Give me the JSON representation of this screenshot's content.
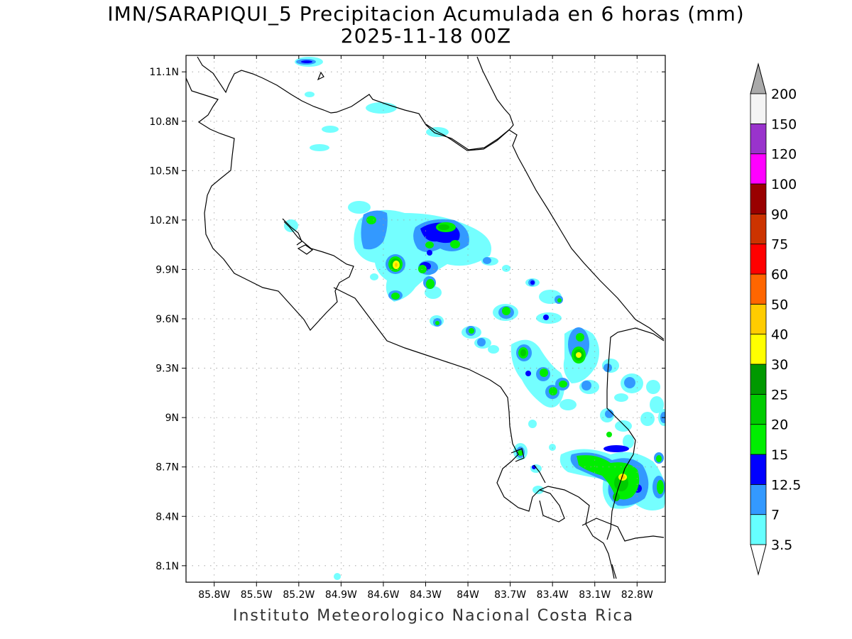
{
  "title": {
    "line1": "IMN/SARAPIQUI_5 Precipitacion Acumulada en 6 horas (mm)",
    "line2": "2025-11-18 00Z"
  },
  "credit": "Instituto Meteorologico Nacional Costa Rica",
  "map": {
    "lon_range": [
      -86.0,
      -82.6
    ],
    "lat_range": [
      8.0,
      11.2
    ],
    "lon_ticks": [
      {
        "value": -85.8,
        "label": "85.8W"
      },
      {
        "value": -85.5,
        "label": "85.5W"
      },
      {
        "value": -85.2,
        "label": "85.2W"
      },
      {
        "value": -84.9,
        "label": "84.9W"
      },
      {
        "value": -84.6,
        "label": "84.6W"
      },
      {
        "value": -84.3,
        "label": "84.3W"
      },
      {
        "value": -84.0,
        "label": "84W"
      },
      {
        "value": -83.7,
        "label": "83.7W"
      },
      {
        "value": -83.4,
        "label": "83.4W"
      },
      {
        "value": -83.1,
        "label": "83.1W"
      },
      {
        "value": -82.8,
        "label": "82.8W"
      }
    ],
    "lat_ticks": [
      {
        "value": 11.1,
        "label": "11.1N"
      },
      {
        "value": 10.8,
        "label": "10.8N"
      },
      {
        "value": 10.5,
        "label": "10.5N"
      },
      {
        "value": 10.2,
        "label": "10.2N"
      },
      {
        "value": 9.9,
        "label": "9.9N"
      },
      {
        "value": 9.6,
        "label": "9.6N"
      },
      {
        "value": 9.3,
        "label": "9.3N"
      },
      {
        "value": 9.0,
        "label": "9N"
      },
      {
        "value": 8.7,
        "label": "8.7N"
      },
      {
        "value": 8.4,
        "label": "8.4N"
      },
      {
        "value": 8.1,
        "label": "8.1N"
      }
    ],
    "grid": true
  },
  "colorbar": {
    "labels": [
      "3.5",
      "7",
      "12.5",
      "15",
      "20",
      "25",
      "30",
      "40",
      "50",
      "60",
      "75",
      "90",
      "100",
      "120",
      "150",
      "200"
    ],
    "colors": [
      "#66ffff",
      "#3399ff",
      "#0000ff",
      "#00ee00",
      "#00cc00",
      "#009900",
      "#ffff00",
      "#ffcc00",
      "#ff6600",
      "#ff0000",
      "#cc3300",
      "#990000",
      "#ff00ff",
      "#9933cc",
      "#f4f4f4"
    ],
    "over_color": "#aaaaaa"
  },
  "precip_cells": [
    {
      "lon": -84.45,
      "lat": 9.98,
      "level": 7
    },
    {
      "lon": -84.15,
      "lat": 10.22,
      "level": 5
    },
    {
      "lon": -84.28,
      "lat": 9.88,
      "level": 5
    },
    {
      "lon": -84.2,
      "lat": 10.05,
      "level": 5
    },
    {
      "lon": -84.48,
      "lat": 9.8,
      "level": 5
    },
    {
      "lon": -84.55,
      "lat": 10.28,
      "level": 4
    },
    {
      "lon": -84.05,
      "lat": 10.12,
      "level": 4
    },
    {
      "lon": -83.65,
      "lat": 9.72,
      "level": 5
    },
    {
      "lon": -83.55,
      "lat": 9.44,
      "level": 6
    },
    {
      "lon": -83.15,
      "lat": 9.42,
      "level": 6
    },
    {
      "lon": -83.15,
      "lat": 9.55,
      "level": 5
    },
    {
      "lon": -83.35,
      "lat": 9.35,
      "level": 5
    },
    {
      "lon": -83.25,
      "lat": 9.22,
      "level": 5
    },
    {
      "lon": -82.9,
      "lat": 8.55,
      "level": 7
    },
    {
      "lon": -82.85,
      "lat": 8.65,
      "level": 6
    },
    {
      "lon": -83.0,
      "lat": 8.7,
      "level": 5
    },
    {
      "lon": -82.65,
      "lat": 8.6,
      "level": 6
    },
    {
      "lon": -83.55,
      "lat": 8.8,
      "level": 5
    },
    {
      "lon": -82.75,
      "lat": 9.25,
      "level": 4
    },
    {
      "lon": -83.85,
      "lat": 9.55,
      "level": 4
    }
  ]
}
